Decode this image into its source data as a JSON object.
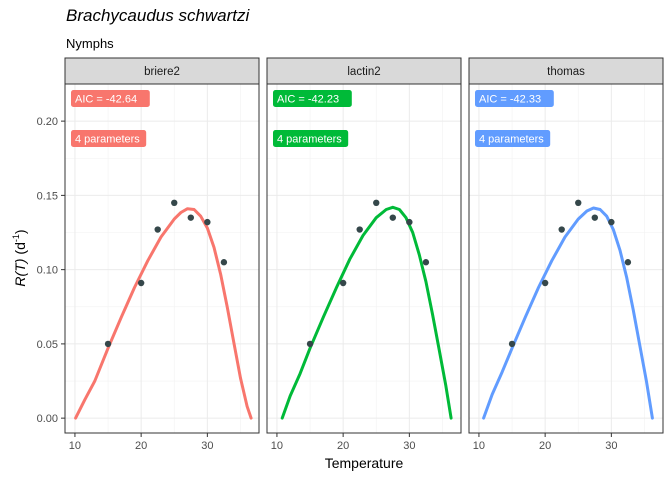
{
  "chart_data": {
    "type": "line",
    "title": "Brachycaudus schwartzi",
    "subtitle": "Nymphs",
    "xlabel": "Temperature",
    "ylabel": {
      "main": "R(T)",
      "unit": "(d",
      "exponent": "-1",
      "close": ")"
    },
    "xlim": [
      8.5,
      37.8
    ],
    "ylim": [
      -0.01,
      0.225
    ],
    "x_ticks": [
      10,
      20,
      30
    ],
    "y_ticks": [
      0.0,
      0.05,
      0.1,
      0.15,
      0.2
    ],
    "y_tick_labels": [
      "0.00",
      "0.05",
      "0.10",
      "0.15",
      "0.20"
    ],
    "grid": true,
    "points": [
      {
        "x": 15,
        "y": 0.05
      },
      {
        "x": 20,
        "y": 0.091
      },
      {
        "x": 22.5,
        "y": 0.127
      },
      {
        "x": 25,
        "y": 0.145
      },
      {
        "x": 27.5,
        "y": 0.135
      },
      {
        "x": 30,
        "y": 0.132
      },
      {
        "x": 32.5,
        "y": 0.105
      }
    ],
    "point_color": "#35474a",
    "panels": [
      {
        "name": "briere2",
        "color": "#F8766D",
        "aic": "AIC = -42.64",
        "params": "4 parameters",
        "curve": [
          [
            10.1,
            0.0
          ],
          [
            11.5,
            0.0125
          ],
          [
            13,
            0.025
          ],
          [
            15,
            0.047
          ],
          [
            17,
            0.068
          ],
          [
            19,
            0.088
          ],
          [
            21,
            0.106
          ],
          [
            23,
            0.122
          ],
          [
            25,
            0.134
          ],
          [
            26,
            0.1385
          ],
          [
            27,
            0.141
          ],
          [
            28,
            0.1405
          ],
          [
            29,
            0.136
          ],
          [
            30,
            0.128
          ],
          [
            31,
            0.115
          ],
          [
            32,
            0.097
          ],
          [
            33,
            0.075
          ],
          [
            34,
            0.051
          ],
          [
            35,
            0.027
          ],
          [
            36,
            0.008
          ],
          [
            36.6,
            0.0
          ]
        ]
      },
      {
        "name": "lactin2",
        "color": "#00BA38",
        "aic": "AIC = -42.23",
        "params": "4 parameters",
        "curve": [
          [
            10.8,
            0.0
          ],
          [
            12,
            0.015
          ],
          [
            13.5,
            0.03
          ],
          [
            15,
            0.047
          ],
          [
            17,
            0.068
          ],
          [
            19,
            0.088
          ],
          [
            21,
            0.107
          ],
          [
            23,
            0.123
          ],
          [
            25,
            0.135
          ],
          [
            26.5,
            0.1405
          ],
          [
            27.5,
            0.142
          ],
          [
            28.5,
            0.1405
          ],
          [
            29.5,
            0.135
          ],
          [
            30.5,
            0.125
          ],
          [
            31.5,
            0.11
          ],
          [
            32.5,
            0.092
          ],
          [
            33.5,
            0.07
          ],
          [
            34.5,
            0.046
          ],
          [
            35.5,
            0.022
          ],
          [
            36.3,
            0.0
          ]
        ]
      },
      {
        "name": "thomas",
        "color": "#619CFF",
        "aic": "AIC = -42.33",
        "params": "4 parameters",
        "curve": [
          [
            10.7,
            0.0
          ],
          [
            12,
            0.016
          ],
          [
            13.5,
            0.031
          ],
          [
            15,
            0.047
          ],
          [
            17,
            0.068
          ],
          [
            19,
            0.088
          ],
          [
            21,
            0.106
          ],
          [
            23,
            0.122
          ],
          [
            25,
            0.134
          ],
          [
            26.3,
            0.1395
          ],
          [
            27.3,
            0.1415
          ],
          [
            28.3,
            0.1405
          ],
          [
            29.3,
            0.136
          ],
          [
            30.3,
            0.127
          ],
          [
            31.3,
            0.113
          ],
          [
            32.3,
            0.095
          ],
          [
            33.3,
            0.073
          ],
          [
            34.3,
            0.049
          ],
          [
            35.3,
            0.025
          ],
          [
            36.2,
            0.0
          ]
        ]
      }
    ]
  }
}
